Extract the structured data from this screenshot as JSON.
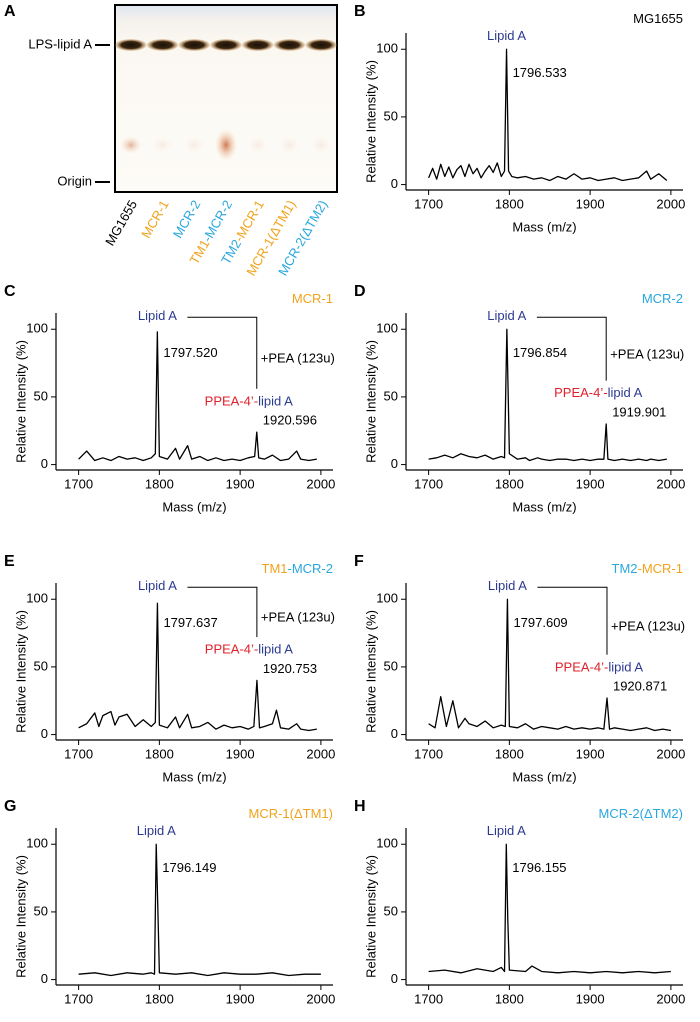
{
  "gel": {
    "panel": "A",
    "band_label": "LPS-lipid A",
    "origin_label": "Origin",
    "lanes": [
      [
        {
          "text": "MG1655",
          "color": "#000000"
        }
      ],
      [
        {
          "text": "MCR-1",
          "color": "#f0a31c"
        }
      ],
      [
        {
          "text": "MCR-2",
          "color": "#2aa7dc"
        }
      ],
      [
        {
          "text": "TM1",
          "color": "#f0a31c"
        },
        {
          "text": "-MCR-2",
          "color": "#2aa7dc"
        }
      ],
      [
        {
          "text": "TM2",
          "color": "#2aa7dc"
        },
        {
          "text": "-MCR-1",
          "color": "#f0a31c"
        }
      ],
      [
        {
          "text": "MCR-1(ΔTM1)",
          "color": "#f0a31c"
        }
      ],
      [
        {
          "text": "MCR-2(ΔTM2)",
          "color": "#2aa7dc"
        }
      ]
    ]
  },
  "chart_data": [
    {
      "type": "line",
      "panel": "B",
      "title": [
        {
          "text": "MG1655",
          "color": "#000000"
        }
      ],
      "xlabel": "Mass (m/z)",
      "ylabel": "Relative Intensity (%)",
      "xlim": [
        1672,
        2015
      ],
      "xticks": [
        1700,
        1800,
        1900,
        2000
      ],
      "ylim": [
        -4,
        112
      ],
      "yticks": [
        0,
        50,
        100
      ],
      "color": "#000000",
      "x": [
        1700,
        1705,
        1710,
        1715,
        1720,
        1725,
        1730,
        1735,
        1740,
        1745,
        1750,
        1755,
        1760,
        1765,
        1770,
        1775,
        1780,
        1785,
        1790,
        1794,
        1796.5,
        1799,
        1803,
        1810,
        1820,
        1830,
        1840,
        1850,
        1860,
        1870,
        1880,
        1890,
        1900,
        1910,
        1920,
        1930,
        1940,
        1950,
        1960,
        1970,
        1975,
        1985,
        1995
      ],
      "values": [
        5,
        12,
        4,
        15,
        6,
        13,
        5,
        11,
        14,
        6,
        15,
        8,
        12,
        5,
        10,
        14,
        9,
        16,
        6,
        10,
        100,
        10,
        6,
        5,
        6,
        4,
        5,
        3,
        6,
        4,
        8,
        4,
        5,
        3,
        4,
        5,
        3,
        4,
        5,
        10,
        4,
        8,
        3
      ],
      "peaks": [
        {
          "label": [
            {
              "text": "Lipid A",
              "color": "#2b3990"
            }
          ],
          "mass": 1796.533
        }
      ]
    },
    {
      "type": "line",
      "panel": "C",
      "title": [
        {
          "text": "MCR-1",
          "color": "#f0a31c"
        }
      ],
      "xlabel": "Mass (m/z)",
      "ylabel": "Relative Intensity (%)",
      "xlim": [
        1672,
        2015
      ],
      "xticks": [
        1700,
        1800,
        1900,
        2000
      ],
      "ylim": [
        -4,
        112
      ],
      "yticks": [
        0,
        50,
        100
      ],
      "color": "#000000",
      "x": [
        1700,
        1710,
        1720,
        1730,
        1740,
        1750,
        1760,
        1770,
        1780,
        1790,
        1795,
        1797.5,
        1800,
        1810,
        1820,
        1825,
        1835,
        1840,
        1850,
        1860,
        1870,
        1880,
        1890,
        1900,
        1910,
        1918,
        1920.6,
        1923,
        1930,
        1940,
        1950,
        1960,
        1970,
        1975,
        1985,
        1995
      ],
      "values": [
        4,
        10,
        3,
        5,
        3,
        6,
        4,
        5,
        3,
        5,
        8,
        98,
        6,
        4,
        12,
        4,
        14,
        4,
        6,
        3,
        5,
        3,
        4,
        3,
        5,
        6,
        24,
        5,
        4,
        7,
        3,
        4,
        10,
        4,
        3,
        4
      ],
      "peaks": [
        {
          "label": [
            {
              "text": "Lipid A",
              "color": "#2b3990"
            }
          ],
          "mass": {
            "value": 1797.52,
            "label": "1797.520"
          }
        },
        {
          "label": [
            {
              "text": "PPEA-4’-",
              "color": "#e0202a"
            },
            {
              "text": "lipid A",
              "color": "#2b3990"
            }
          ],
          "mass": 1920.596
        }
      ],
      "shift_label": "+PEA (123u)"
    },
    {
      "type": "line",
      "panel": "D",
      "title": [
        {
          "text": "MCR-2",
          "color": "#2aa7dc"
        }
      ],
      "xlabel": "Mass (m/z)",
      "ylabel": "Relative Intensity (%)",
      "xlim": [
        1672,
        2015
      ],
      "xticks": [
        1700,
        1800,
        1900,
        2000
      ],
      "ylim": [
        -4,
        112
      ],
      "yticks": [
        0,
        50,
        100
      ],
      "color": "#000000",
      "x": [
        1700,
        1710,
        1720,
        1730,
        1740,
        1750,
        1760,
        1770,
        1780,
        1790,
        1794,
        1796.9,
        1800,
        1810,
        1820,
        1825,
        1835,
        1840,
        1850,
        1860,
        1870,
        1880,
        1890,
        1900,
        1910,
        1917,
        1919.9,
        1922,
        1930,
        1940,
        1950,
        1960,
        1970,
        1975,
        1985,
        1995
      ],
      "values": [
        4,
        5,
        7,
        5,
        8,
        6,
        5,
        7,
        4,
        6,
        5,
        100,
        8,
        4,
        5,
        3,
        5,
        4,
        3,
        4,
        4,
        3,
        4,
        3,
        4,
        4,
        30,
        4,
        3,
        4,
        3,
        4,
        3,
        4,
        3,
        4
      ],
      "peaks": [
        {
          "label": [
            {
              "text": "Lipid A",
              "color": "#2b3990"
            }
          ],
          "mass": 1796.854
        },
        {
          "label": [
            {
              "text": "PPEA-4’-",
              "color": "#e0202a"
            },
            {
              "text": "lipid A",
              "color": "#2b3990"
            }
          ],
          "mass": 1919.901
        }
      ],
      "shift_label": "+PEA (123u)"
    },
    {
      "type": "line",
      "panel": "E",
      "title": [
        {
          "text": "TM1",
          "color": "#f0a31c"
        },
        {
          "text": "-MCR-2",
          "color": "#2aa7dc"
        }
      ],
      "xlabel": "Mass (m/z)",
      "ylabel": "Relative Intensity (%)",
      "xlim": [
        1672,
        2015
      ],
      "xticks": [
        1700,
        1800,
        1900,
        2000
      ],
      "ylim": [
        -4,
        112
      ],
      "yticks": [
        0,
        50,
        100
      ],
      "color": "#000000",
      "x": [
        1700,
        1710,
        1720,
        1725,
        1730,
        1740,
        1745,
        1750,
        1760,
        1770,
        1780,
        1790,
        1795,
        1797.6,
        1800,
        1810,
        1820,
        1825,
        1835,
        1840,
        1850,
        1860,
        1870,
        1880,
        1890,
        1900,
        1910,
        1917,
        1920.8,
        1924,
        1930,
        1940,
        1945,
        1950,
        1960,
        1970,
        1975,
        1985,
        1995
      ],
      "values": [
        5,
        8,
        16,
        6,
        14,
        17,
        7,
        13,
        15,
        6,
        11,
        6,
        9,
        97,
        7,
        5,
        13,
        5,
        15,
        5,
        6,
        9,
        4,
        7,
        5,
        6,
        4,
        6,
        40,
        5,
        6,
        8,
        18,
        5,
        4,
        8,
        4,
        3,
        4
      ],
      "peaks": [
        {
          "label": [
            {
              "text": "Lipid A",
              "color": "#2b3990"
            }
          ],
          "mass": 1797.637
        },
        {
          "label": [
            {
              "text": "PPEA-4’-",
              "color": "#e0202a"
            },
            {
              "text": "lipid A",
              "color": "#2b3990"
            }
          ],
          "mass": 1920.753
        }
      ],
      "shift_label": "+PEA (123u)"
    },
    {
      "type": "line",
      "panel": "F",
      "title": [
        {
          "text": "TM2",
          "color": "#2aa7dc"
        },
        {
          "text": "-MCR-1",
          "color": "#f0a31c"
        }
      ],
      "xlabel": "Mass (m/z)",
      "ylabel": "Relative Intensity (%)",
      "xlim": [
        1672,
        2015
      ],
      "xticks": [
        1700,
        1800,
        1900,
        2000
      ],
      "ylim": [
        -4,
        112
      ],
      "yticks": [
        0,
        50,
        100
      ],
      "color": "#000000",
      "x": [
        1700,
        1708,
        1715,
        1722,
        1730,
        1737,
        1745,
        1750,
        1760,
        1770,
        1780,
        1790,
        1795,
        1797.6,
        1800,
        1810,
        1820,
        1830,
        1840,
        1850,
        1860,
        1870,
        1880,
        1890,
        1900,
        1910,
        1917,
        1920.9,
        1924,
        1930,
        1940,
        1950,
        1960,
        1970,
        1980,
        1990,
        2000
      ],
      "values": [
        8,
        5,
        28,
        6,
        25,
        5,
        12,
        8,
        6,
        10,
        5,
        7,
        6,
        100,
        6,
        5,
        8,
        4,
        6,
        5,
        4,
        6,
        4,
        5,
        4,
        5,
        4,
        27,
        4,
        5,
        4,
        3,
        4,
        5,
        3,
        4,
        3
      ],
      "peaks": [
        {
          "label": [
            {
              "text": "Lipid A",
              "color": "#2b3990"
            }
          ],
          "mass": 1797.609
        },
        {
          "label": [
            {
              "text": "PPEA-4’-",
              "color": "#e0202a"
            },
            {
              "text": "lipid A",
              "color": "#2b3990"
            }
          ],
          "mass": 1920.871
        }
      ],
      "shift_label": "+PEA (123u)"
    },
    {
      "type": "line",
      "panel": "G",
      "title": [
        {
          "text": "MCR-1(ΔTM1)",
          "color": "#f0a31c"
        }
      ],
      "ylabel": "Relative Intensity (%)",
      "xlim": [
        1672,
        2015
      ],
      "xticks": [
        1700,
        1800,
        1900,
        2000
      ],
      "ylim": [
        -4,
        112
      ],
      "yticks": [
        0,
        50,
        100
      ],
      "color": "#000000",
      "x": [
        1700,
        1720,
        1740,
        1760,
        1780,
        1790,
        1794,
        1796.1,
        1798,
        1800,
        1820,
        1840,
        1860,
        1880,
        1900,
        1920,
        1940,
        1960,
        1980,
        2000
      ],
      "values": [
        4,
        5,
        3,
        5,
        4,
        5,
        4,
        100,
        55,
        5,
        4,
        5,
        3,
        5,
        4,
        4,
        5,
        3,
        4,
        4
      ],
      "peaks": [
        {
          "label": [
            {
              "text": "Lipid A",
              "color": "#2b3990"
            }
          ],
          "mass": 1796.149
        }
      ]
    },
    {
      "type": "line",
      "panel": "H",
      "title": [
        {
          "text": "MCR-2(ΔTM2)",
          "color": "#2aa7dc"
        }
      ],
      "ylabel": "Relative Intensity (%)",
      "xlim": [
        1672,
        2015
      ],
      "xticks": [
        1700,
        1800,
        1900,
        2000
      ],
      "ylim": [
        -4,
        112
      ],
      "yticks": [
        0,
        50,
        100
      ],
      "color": "#000000",
      "x": [
        1700,
        1720,
        1740,
        1760,
        1780,
        1790,
        1794,
        1796.2,
        1798,
        1800,
        1820,
        1828,
        1840,
        1860,
        1880,
        1900,
        1920,
        1940,
        1960,
        1980,
        2000
      ],
      "values": [
        6,
        7,
        5,
        8,
        6,
        9,
        6,
        100,
        45,
        7,
        6,
        10,
        6,
        5,
        6,
        5,
        6,
        5,
        6,
        5,
        6
      ],
      "peaks": [
        {
          "label": [
            {
              "text": "Lipid A",
              "color": "#2b3990"
            }
          ],
          "mass": 1796.155
        }
      ]
    }
  ]
}
